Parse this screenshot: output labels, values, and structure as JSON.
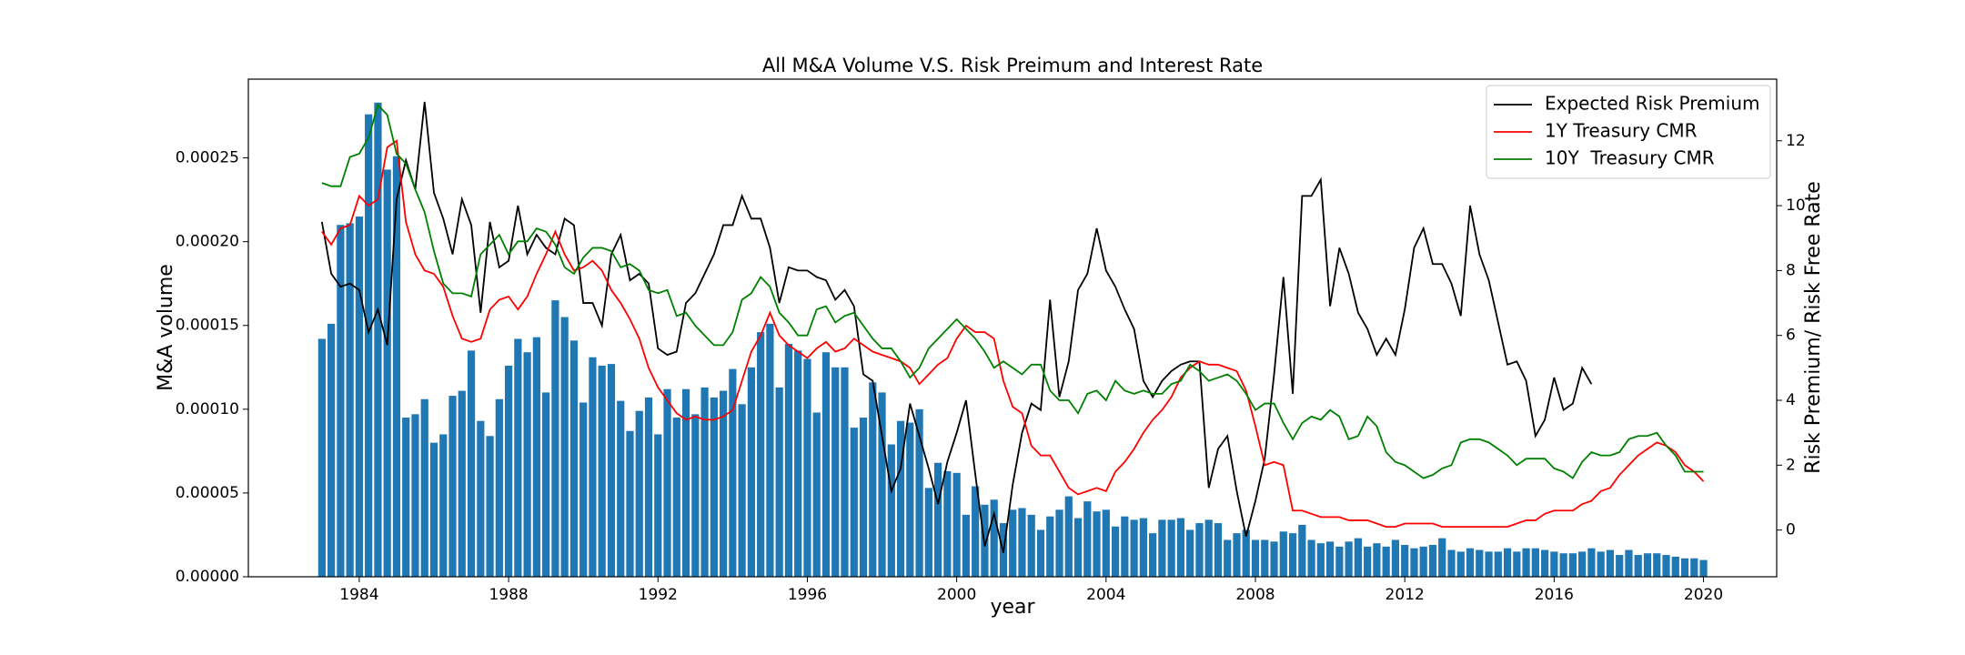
{
  "chart_data": {
    "type": "bar",
    "title": "All M&A Volume V.S. Risk Preimum and Interest Rate",
    "x_label": "year",
    "y_label": "M&A volume",
    "y2_label": "Risk Premium/ Risk Free Rate",
    "xlim": [
      1981.03,
      2021.96
    ],
    "xticks": [
      1984,
      1988,
      1992,
      1996,
      2000,
      2004,
      2008,
      2012,
      2016,
      2020
    ],
    "ylim": [
      0,
      0.000297
    ],
    "yticks": [
      {
        "value": 0,
        "label": "0.00000"
      },
      5e-05,
      {
        "value": 0.0001,
        "label": "0.00010"
      },
      0.00015,
      {
        "value": 0.0002,
        "label": "0.00020"
      },
      0.00025
    ],
    "y2lim": [
      -1.44,
      13.9
    ],
    "y2ticks": [
      0,
      2,
      4,
      6,
      8,
      10,
      12
    ],
    "legend": "upper right",
    "x": [
      1983,
      1983.25,
      1983.5,
      1983.75,
      1984,
      1984.25,
      1984.5,
      1984.75,
      1985,
      1985.25,
      1985.5,
      1985.75,
      1986,
      1986.25,
      1986.5,
      1986.75,
      1987,
      1987.25,
      1987.5,
      1987.75,
      1988,
      1988.25,
      1988.5,
      1988.75,
      1989,
      1989.25,
      1989.5,
      1989.75,
      1990,
      1990.25,
      1990.5,
      1990.75,
      1991,
      1991.25,
      1991.5,
      1991.75,
      1992,
      1992.25,
      1992.5,
      1992.75,
      1993,
      1993.25,
      1993.5,
      1993.75,
      1994,
      1994.25,
      1994.5,
      1994.75,
      1995,
      1995.25,
      1995.5,
      1995.75,
      1996,
      1996.25,
      1996.5,
      1996.75,
      1997,
      1997.25,
      1997.5,
      1997.75,
      1998,
      1998.25,
      1998.5,
      1998.75,
      1999,
      1999.25,
      1999.5,
      1999.75,
      2000,
      2000.25,
      2000.5,
      2000.75,
      2001,
      2001.25,
      2001.5,
      2001.75,
      2002,
      2002.25,
      2002.5,
      2002.75,
      2003,
      2003.25,
      2003.5,
      2003.75,
      2004,
      2004.25,
      2004.5,
      2004.75,
      2005,
      2005.25,
      2005.5,
      2005.75,
      2006,
      2006.25,
      2006.5,
      2006.75,
      2007,
      2007.25,
      2007.5,
      2007.75,
      2008,
      2008.25,
      2008.5,
      2008.75,
      2009,
      2009.25,
      2009.5,
      2009.75,
      2010,
      2010.25,
      2010.5,
      2010.75,
      2011,
      2011.25,
      2011.5,
      2011.75,
      2012,
      2012.25,
      2012.5,
      2012.75,
      2013,
      2013.25,
      2013.5,
      2013.75,
      2014,
      2014.25,
      2014.5,
      2014.75,
      2015,
      2015.25,
      2015.5,
      2015.75,
      2016,
      2016.25,
      2016.5,
      2016.75,
      2017,
      2017.25,
      2017.5,
      2017.75,
      2018,
      2018.25,
      2018.5,
      2018.75,
      2019,
      2019.25,
      2019.5,
      2019.75,
      2020
    ],
    "series": [
      {
        "type": "bar",
        "color": "#1f77b4",
        "values": [
          0.000142,
          0.000151,
          0.00021,
          0.000211,
          0.000215,
          0.000276,
          0.000283,
          0.000243,
          0.000251,
          9.5e-05,
          9.7e-05,
          0.000106,
          8e-05,
          8.5e-05,
          0.000108,
          0.000111,
          0.000135,
          9.3e-05,
          8.4e-05,
          0.000106,
          0.000126,
          0.000142,
          0.000134,
          0.000143,
          0.00011,
          0.000165,
          0.000155,
          0.000141,
          0.000104,
          0.000131,
          0.000126,
          0.000127,
          0.000105,
          8.7e-05,
          9.9e-05,
          0.000107,
          8.5e-05,
          0.000112,
          9.5e-05,
          0.000112,
          9.7e-05,
          0.000113,
          0.000107,
          0.000111,
          0.000124,
          0.000103,
          0.000125,
          0.000146,
          0.000151,
          0.000113,
          0.000139,
          0.000135,
          0.00013,
          9.8e-05,
          0.000134,
          0.000125,
          0.000125,
          8.9e-05,
          9.5e-05,
          0.000116,
          0.00011,
          7.9e-05,
          9.3e-05,
          9.2e-05,
          0.0001,
          5.3e-05,
          6.8e-05,
          6.3e-05,
          6.2e-05,
          3.7e-05,
          5.4e-05,
          4.3e-05,
          4.6e-05,
          3.2e-05,
          4e-05,
          4.1e-05,
          3.7e-05,
          2.8e-05,
          3.6e-05,
          4e-05,
          4.8e-05,
          3.5e-05,
          4.5e-05,
          3.9e-05,
          4e-05,
          3e-05,
          3.6e-05,
          3.4e-05,
          3.5e-05,
          2.6e-05,
          3.4e-05,
          3.4e-05,
          3.5e-05,
          2.8e-05,
          3.2e-05,
          3.4e-05,
          3.2e-05,
          2.2e-05,
          2.6e-05,
          2.8e-05,
          2.2e-05,
          2.2e-05,
          2.1e-05,
          2.7e-05,
          2.6e-05,
          3.1e-05,
          2.2e-05,
          2e-05,
          2.1e-05,
          1.8e-05,
          2.1e-05,
          2.3e-05,
          1.8e-05,
          2e-05,
          1.8e-05,
          2.2e-05,
          1.9e-05,
          1.7e-05,
          1.8e-05,
          1.9e-05,
          2.3e-05,
          1.6e-05,
          1.5e-05,
          1.7e-05,
          1.6e-05,
          1.5e-05,
          1.5e-05,
          1.7e-05,
          1.5e-05,
          1.7e-05,
          1.7e-05,
          1.6e-05,
          1.5e-05,
          1.4e-05,
          1.4e-05,
          1.5e-05,
          1.7e-05,
          1.5e-05,
          1.6e-05,
          1.3e-05,
          1.6e-05,
          1.3e-05,
          1.4e-05,
          1.4e-05,
          1.3e-05,
          1.2e-05,
          1.1e-05,
          1.1e-05,
          1e-05
        ]
      },
      {
        "type": "line",
        "axis": "y2",
        "name": "Expected Risk Premium",
        "color": "#000000",
        "values": [
          9.5,
          7.9,
          7.5,
          7.6,
          7.4,
          6.1,
          6.8,
          5.7,
          10.2,
          11.4,
          10.5,
          13.2,
          10.4,
          9.6,
          8.5,
          10.2,
          9.4,
          6.7,
          9.5,
          8.1,
          8.3,
          10.0,
          8.5,
          9.1,
          8.7,
          8.5,
          9.6,
          9.4,
          7.0,
          7.0,
          6.3,
          8.5,
          9.1,
          7.7,
          7.9,
          7.6,
          5.6,
          5.4,
          5.5,
          7.0,
          7.3,
          7.9,
          8.5,
          9.4,
          9.4,
          10.3,
          9.6,
          9.6,
          8.7,
          7.0,
          8.1,
          8.0,
          8.0,
          7.8,
          7.7,
          7.1,
          7.4,
          6.9,
          4.8,
          4.6,
          2.9,
          1.2,
          1.9,
          3.9,
          2.9,
          1.9,
          0.8,
          2.1,
          3.0,
          4.0,
          1.7,
          -0.5,
          0.5,
          -0.7,
          1.4,
          3.0,
          3.9,
          3.7,
          7.1,
          4.1,
          5.2,
          7.4,
          7.9,
          9.3,
          8.0,
          7.5,
          6.8,
          6.2,
          4.6,
          4.1,
          4.6,
          4.9,
          5.1,
          5.2,
          5.2,
          1.3,
          2.5,
          2.9,
          1.2,
          -0.2,
          0.9,
          2.2,
          4.8,
          7.8,
          4.2,
          10.3,
          10.3,
          10.8,
          6.9,
          8.7,
          7.9,
          6.7,
          6.2,
          5.4,
          5.9,
          5.4,
          6.8,
          8.7,
          9.3,
          8.2,
          8.2,
          7.6,
          6.6,
          10.0,
          8.5,
          7.7,
          6.4,
          5.1,
          5.2,
          4.6,
          2.9,
          3.4,
          4.7,
          3.7,
          3.9,
          5.0,
          4.5,
          null,
          null,
          null,
          null,
          null,
          null,
          null,
          null,
          null,
          null,
          null,
          null
        ]
      },
      {
        "type": "line",
        "axis": "y2",
        "name": "1Y Treasury CMR",
        "color": "#ff0000",
        "values": [
          9.2,
          8.8,
          9.3,
          9.4,
          10.3,
          10.0,
          10.2,
          11.8,
          12.0,
          9.5,
          8.5,
          8.0,
          7.9,
          7.5,
          6.6,
          5.9,
          5.8,
          5.9,
          6.8,
          7.1,
          7.2,
          6.8,
          7.2,
          7.9,
          8.5,
          9.2,
          8.5,
          8.0,
          8.1,
          8.3,
          8.0,
          7.4,
          7.0,
          6.5,
          5.9,
          5.0,
          4.4,
          4.0,
          3.6,
          3.4,
          3.5,
          3.4,
          3.4,
          3.5,
          3.7,
          4.6,
          5.5,
          6.0,
          6.7,
          6.0,
          5.7,
          5.5,
          5.3,
          5.6,
          5.8,
          5.5,
          5.6,
          5.9,
          5.7,
          5.5,
          5.4,
          5.3,
          5.2,
          5.0,
          4.5,
          4.8,
          5.1,
          5.3,
          5.9,
          6.3,
          6.1,
          6.1,
          5.9,
          4.6,
          3.8,
          3.6,
          2.6,
          2.3,
          2.3,
          1.8,
          1.3,
          1.1,
          1.2,
          1.3,
          1.2,
          1.8,
          2.1,
          2.5,
          3.0,
          3.4,
          3.7,
          4.1,
          4.7,
          5.0,
          5.2,
          5.1,
          5.1,
          5.0,
          4.9,
          4.3,
          3.2,
          2.0,
          2.1,
          2.0,
          0.6,
          0.6,
          0.5,
          0.4,
          0.4,
          0.4,
          0.3,
          0.3,
          0.3,
          0.2,
          0.1,
          0.1,
          0.2,
          0.2,
          0.2,
          0.2,
          0.1,
          0.1,
          0.1,
          0.1,
          0.1,
          0.1,
          0.1,
          0.1,
          0.2,
          0.3,
          0.3,
          0.5,
          0.6,
          0.6,
          0.6,
          0.8,
          0.9,
          1.2,
          1.3,
          1.7,
          2.0,
          2.3,
          2.5,
          2.7,
          2.6,
          2.4,
          2.0,
          1.8,
          1.5
        ]
      },
      {
        "type": "line",
        "axis": "y2",
        "name": "10Y  Treasury CMR",
        "color": "#008000",
        "values": [
          10.7,
          10.6,
          10.6,
          11.5,
          11.6,
          12.1,
          13.1,
          12.8,
          11.6,
          11.3,
          10.5,
          9.8,
          8.6,
          7.6,
          7.3,
          7.3,
          7.2,
          8.5,
          8.8,
          9.1,
          8.5,
          8.9,
          8.9,
          9.3,
          9.2,
          8.8,
          8.1,
          7.9,
          8.4,
          8.7,
          8.7,
          8.6,
          8.1,
          8.2,
          8.0,
          7.4,
          7.3,
          7.4,
          6.6,
          6.7,
          6.3,
          6.0,
          5.7,
          5.7,
          6.1,
          7.1,
          7.3,
          7.8,
          7.5,
          6.7,
          6.4,
          6.0,
          6.0,
          6.8,
          6.9,
          6.4,
          6.6,
          6.7,
          6.3,
          5.9,
          5.6,
          5.6,
          5.2,
          4.7,
          5.0,
          5.6,
          5.9,
          6.2,
          6.5,
          6.2,
          5.9,
          5.5,
          5.0,
          5.2,
          5.0,
          4.8,
          5.1,
          5.1,
          4.3,
          4.0,
          4.0,
          3.6,
          4.2,
          4.3,
          4.0,
          4.6,
          4.3,
          4.2,
          4.3,
          4.2,
          4.2,
          4.5,
          4.6,
          5.1,
          4.9,
          4.6,
          4.7,
          4.8,
          4.6,
          4.2,
          3.7,
          3.9,
          3.9,
          3.3,
          2.8,
          3.3,
          3.5,
          3.4,
          3.7,
          3.5,
          2.8,
          2.9,
          3.5,
          3.2,
          2.4,
          2.1,
          2.0,
          1.8,
          1.6,
          1.7,
          1.9,
          2.0,
          2.7,
          2.8,
          2.8,
          2.7,
          2.5,
          2.3,
          2.0,
          2.2,
          2.2,
          2.2,
          1.9,
          1.8,
          1.6,
          2.1,
          2.4,
          2.3,
          2.3,
          2.4,
          2.8,
          2.9,
          2.9,
          3.0,
          2.6,
          2.3,
          1.8,
          1.8,
          1.8
        ]
      }
    ]
  }
}
